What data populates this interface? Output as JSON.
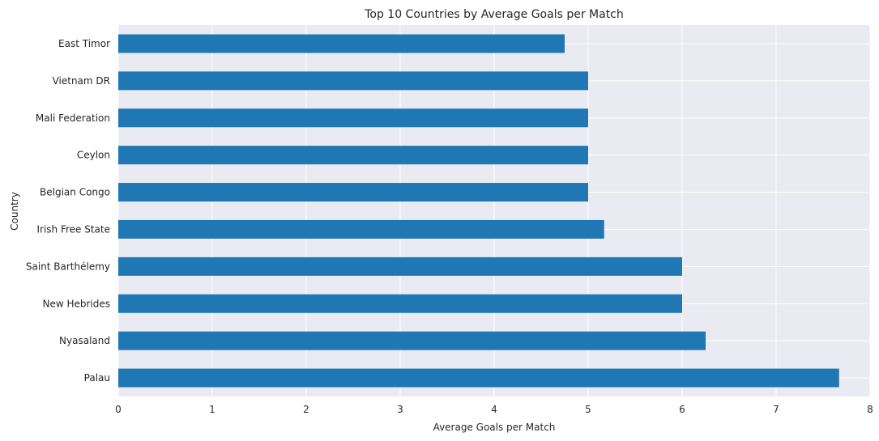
{
  "chart_data": {
    "type": "bar",
    "orientation": "horizontal",
    "title": "Top 10 Countries by Average Goals per Match",
    "xlabel": "Average Goals per Match",
    "ylabel": "Country",
    "categories": [
      "East Timor",
      "Vietnam DR",
      "Mali Federation",
      "Ceylon",
      "Belgian Congo",
      "Irish Free State",
      "Saint Barthélemy",
      "New Hebrides",
      "Nyasaland",
      "Palau"
    ],
    "values": [
      4.75,
      5.0,
      5.0,
      5.0,
      5.0,
      5.17,
      6.0,
      6.0,
      6.25,
      7.67
    ],
    "xlim": [
      0,
      8.0
    ],
    "xticks": [
      "0",
      "1",
      "2",
      "3",
      "4",
      "5",
      "6",
      "7",
      "8"
    ],
    "grid": true,
    "colors": {
      "bar": "#1f77b4",
      "plot_background": "#eaeaf2",
      "grid": "#ffffff"
    }
  }
}
